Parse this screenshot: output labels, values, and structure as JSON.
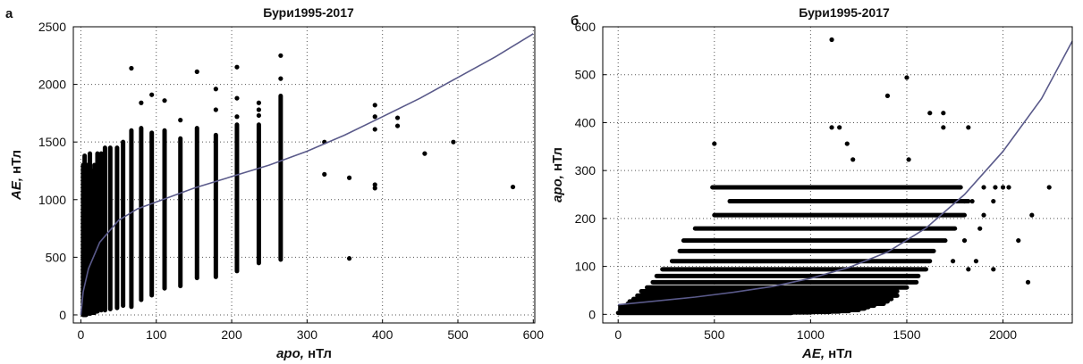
{
  "chart_data": [
    {
      "type": "scatter",
      "panel_label": "а",
      "title": "Бури1995-2017",
      "xlabel_italic": "apo,",
      "xlabel_unit": " нТл",
      "ylabel_italic": "AE,",
      "ylabel_unit": " нТл",
      "xlim": [
        -10,
        602
      ],
      "ylim": [
        -70,
        2500
      ],
      "xticks": [
        0,
        100,
        200,
        300,
        400,
        500,
        600
      ],
      "yticks": [
        0,
        500,
        1000,
        1500,
        2000,
        2500
      ],
      "grid": true,
      "columns": [
        {
          "x": 3,
          "ymin": 0,
          "ymax": 1300
        },
        {
          "x": 4,
          "ymin": 0,
          "ymax": 1200
        },
        {
          "x": 5,
          "ymin": 0,
          "ymax": 1380
        },
        {
          "x": 6,
          "ymin": 0,
          "ymax": 1250
        },
        {
          "x": 7,
          "ymin": 0,
          "ymax": 1150
        },
        {
          "x": 9,
          "ymin": 10,
          "ymax": 1300
        },
        {
          "x": 12,
          "ymin": 10,
          "ymax": 1400
        },
        {
          "x": 15,
          "ymin": 20,
          "ymax": 1250
        },
        {
          "x": 18,
          "ymin": 20,
          "ymax": 1300
        },
        {
          "x": 22,
          "ymin": 30,
          "ymax": 1400
        },
        {
          "x": 27,
          "ymin": 40,
          "ymax": 1400
        },
        {
          "x": 32,
          "ymin": 40,
          "ymax": 1450
        },
        {
          "x": 39,
          "ymin": 50,
          "ymax": 1450
        },
        {
          "x": 48,
          "ymin": 60,
          "ymax": 1450
        },
        {
          "x": 56,
          "ymin": 80,
          "ymax": 1500
        },
        {
          "x": 67,
          "ymin": 70,
          "ymax": 1600
        },
        {
          "x": 80,
          "ymin": 130,
          "ymax": 1620
        },
        {
          "x": 94,
          "ymin": 170,
          "ymax": 1580
        },
        {
          "x": 111,
          "ymin": 230,
          "ymax": 1600
        },
        {
          "x": 132,
          "ymin": 250,
          "ymax": 1530
        },
        {
          "x": 154,
          "ymin": 320,
          "ymax": 1620
        },
        {
          "x": 179,
          "ymin": 330,
          "ymax": 1560
        },
        {
          "x": 207,
          "ymin": 380,
          "ymax": 1650
        },
        {
          "x": 236,
          "ymin": 450,
          "ymax": 1650
        },
        {
          "x": 265,
          "ymin": 480,
          "ymax": 1900
        }
      ],
      "points": [
        [
          67,
          2140
        ],
        [
          80,
          1840
        ],
        [
          94,
          1910
        ],
        [
          111,
          1860
        ],
        [
          132,
          1690
        ],
        [
          154,
          2110
        ],
        [
          179,
          1960
        ],
        [
          207,
          2150
        ],
        [
          236,
          1840
        ],
        [
          265,
          2250
        ],
        [
          265,
          2050
        ],
        [
          236,
          1780
        ],
        [
          207,
          1720
        ],
        [
          179,
          1780
        ],
        [
          207,
          1880
        ],
        [
          236,
          1730
        ],
        [
          323,
          1500
        ],
        [
          323,
          1220
        ],
        [
          356,
          1190
        ],
        [
          356,
          490
        ],
        [
          390,
          1820
        ],
        [
          390,
          1720
        ],
        [
          390,
          1610
        ],
        [
          390,
          1130
        ],
        [
          390,
          1100
        ],
        [
          420,
          1710
        ],
        [
          420,
          1640
        ],
        [
          456,
          1400
        ],
        [
          494,
          1500
        ],
        [
          573,
          1110
        ]
      ],
      "fit_x": [
        0,
        3,
        10,
        25,
        50,
        75,
        100,
        150,
        200,
        250,
        300,
        350,
        400,
        450,
        500,
        550,
        600
      ],
      "fit_y": [
        0,
        200,
        400,
        630,
        820,
        920,
        980,
        1100,
        1200,
        1300,
        1420,
        1560,
        1720,
        1880,
        2060,
        2240,
        2440
      ]
    },
    {
      "type": "scatter",
      "panel_label": "б",
      "title": "Бури1995-2017",
      "xlabel_italic": "AE,",
      "xlabel_unit": "  нТл",
      "ylabel_italic": "apo,",
      "ylabel_unit": " нТл",
      "xlim": [
        -80,
        2360
      ],
      "ylim": [
        -18,
        600
      ],
      "xticks": [
        0,
        500,
        1000,
        1500,
        2000
      ],
      "yticks": [
        0,
        100,
        200,
        300,
        400,
        500,
        600
      ],
      "grid": true,
      "rows": [
        {
          "y": 3,
          "xmin": 0,
          "xmax": 900
        },
        {
          "y": 4,
          "xmin": 10,
          "xmax": 1000
        },
        {
          "y": 5,
          "xmin": 10,
          "xmax": 1100
        },
        {
          "y": 6,
          "xmin": 20,
          "xmax": 1150
        },
        {
          "y": 7,
          "xmin": 20,
          "xmax": 1200
        },
        {
          "y": 9,
          "xmin": 20,
          "xmax": 1250
        },
        {
          "y": 12,
          "xmin": 30,
          "xmax": 1280
        },
        {
          "y": 15,
          "xmin": 40,
          "xmax": 1300
        },
        {
          "y": 18,
          "xmin": 40,
          "xmax": 1330
        },
        {
          "y": 22,
          "xmin": 50,
          "xmax": 1380
        },
        {
          "y": 27,
          "xmin": 60,
          "xmax": 1400
        },
        {
          "y": 32,
          "xmin": 80,
          "xmax": 1420
        },
        {
          "y": 39,
          "xmin": 100,
          "xmax": 1450
        },
        {
          "y": 48,
          "xmin": 120,
          "xmax": 1450
        },
        {
          "y": 56,
          "xmin": 150,
          "xmax": 1500
        },
        {
          "y": 67,
          "xmin": 180,
          "xmax": 1550
        },
        {
          "y": 80,
          "xmin": 200,
          "xmax": 1560
        },
        {
          "y": 94,
          "xmin": 230,
          "xmax": 1600
        },
        {
          "y": 111,
          "xmin": 280,
          "xmax": 1620
        },
        {
          "y": 132,
          "xmin": 320,
          "xmax": 1640
        },
        {
          "y": 154,
          "xmin": 340,
          "xmax": 1700
        },
        {
          "y": 179,
          "xmin": 400,
          "xmax": 1750
        },
        {
          "y": 207,
          "xmin": 500,
          "xmax": 1800
        },
        {
          "y": 236,
          "xmin": 580,
          "xmax": 1820
        },
        {
          "y": 265,
          "xmin": 490,
          "xmax": 1780
        }
      ],
      "points": [
        [
          1110,
          573
        ],
        [
          1500,
          494
        ],
        [
          1400,
          456
        ],
        [
          1620,
          420
        ],
        [
          1690,
          420
        ],
        [
          1690,
          390
        ],
        [
          1110,
          390
        ],
        [
          1150,
          390
        ],
        [
          1190,
          356
        ],
        [
          500,
          356
        ],
        [
          1220,
          323
        ],
        [
          1510,
          323
        ],
        [
          1820,
          390
        ],
        [
          1900,
          265
        ],
        [
          1960,
          265
        ],
        [
          2000,
          265
        ],
        [
          2030,
          265
        ],
        [
          2240,
          265
        ],
        [
          1800,
          236
        ],
        [
          1840,
          236
        ],
        [
          1950,
          236
        ],
        [
          1900,
          207
        ],
        [
          2150,
          207
        ],
        [
          1880,
          179
        ],
        [
          1800,
          154
        ],
        [
          2080,
          154
        ],
        [
          1740,
          111
        ],
        [
          1860,
          111
        ],
        [
          1820,
          94
        ],
        [
          1950,
          94
        ],
        [
          2130,
          67
        ],
        [
          1500,
          67
        ]
      ],
      "fit_x": [
        0,
        200,
        400,
        600,
        800,
        1000,
        1200,
        1400,
        1600,
        1800,
        2000,
        2200,
        2360
      ],
      "fit_y": [
        20,
        28,
        36,
        46,
        58,
        75,
        98,
        130,
        180,
        250,
        340,
        450,
        570
      ]
    }
  ]
}
